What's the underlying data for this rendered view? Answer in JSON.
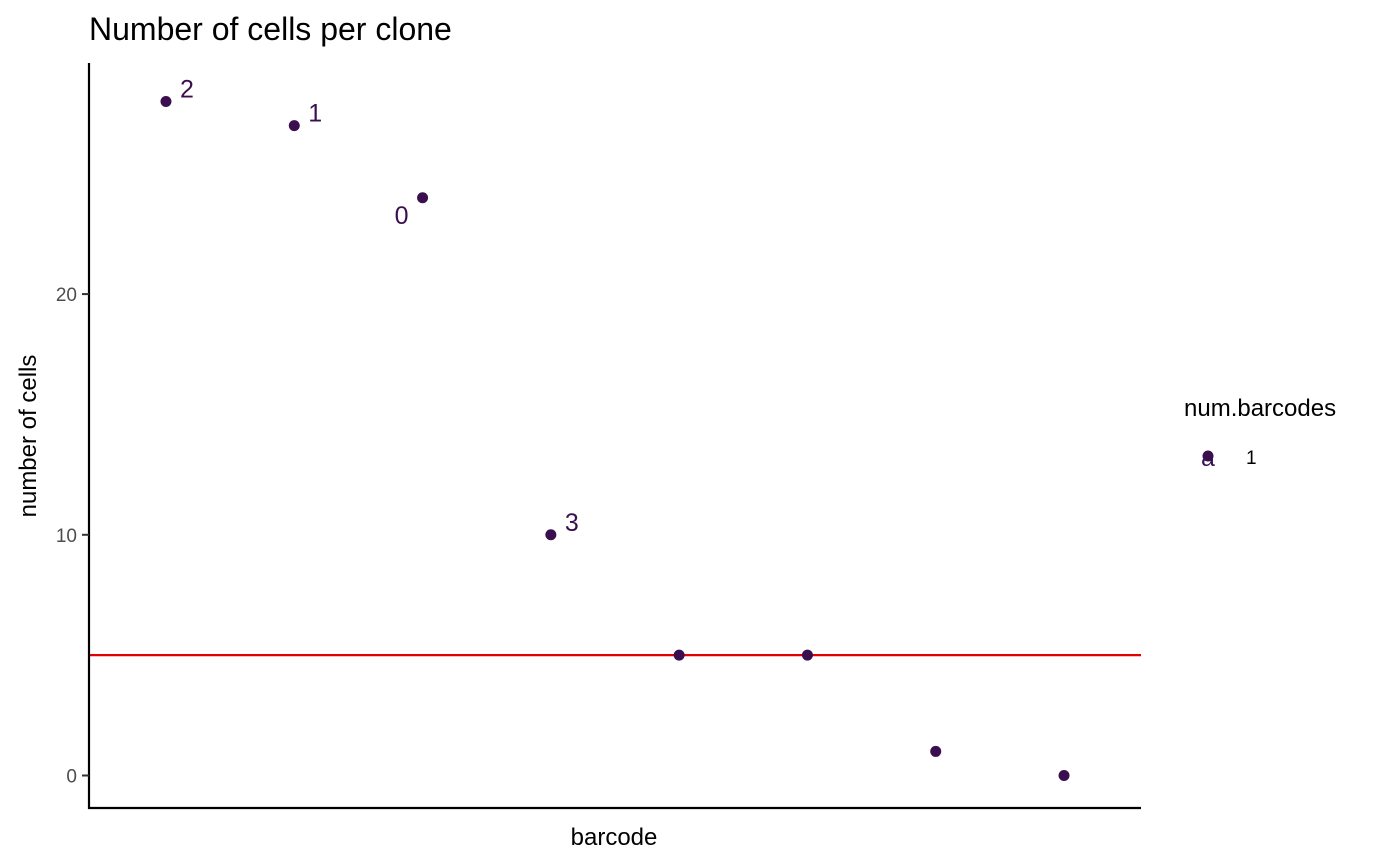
{
  "chart_data": {
    "type": "scatter",
    "title": "Number of cells per clone",
    "xlabel": "barcode",
    "ylabel": "number of cells",
    "ylim": [
      -1.35,
      29.6
    ],
    "yticks": [
      0,
      10,
      20
    ],
    "x_tick_labels_shown": false,
    "grid": false,
    "points": [
      {
        "x": 1,
        "y": 28,
        "label": "2"
      },
      {
        "x": 2,
        "y": 27,
        "label": "1"
      },
      {
        "x": 3,
        "y": 24,
        "label": "0"
      },
      {
        "x": 4,
        "y": 10,
        "label": "3"
      },
      {
        "x": 5,
        "y": 5,
        "label": ""
      },
      {
        "x": 6,
        "y": 5,
        "label": ""
      },
      {
        "x": 7,
        "y": 1,
        "label": ""
      },
      {
        "x": 8,
        "y": 0,
        "label": ""
      }
    ],
    "threshold_line": {
      "y": 5,
      "color": "#e00000"
    },
    "point_color": "#3b0f4f",
    "legend": {
      "title": "num.barcodes",
      "placement": "right",
      "entries": [
        {
          "label": "1",
          "key_text": "a",
          "color": "#3b0f4f"
        }
      ]
    }
  }
}
